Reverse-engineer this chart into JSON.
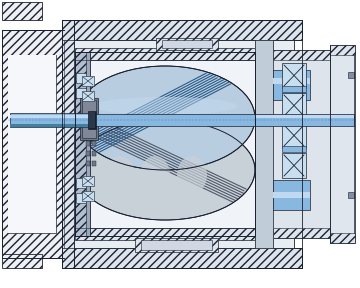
{
  "bg_color": "#ffffff",
  "hatch_color": "#8090a8",
  "metal_light": "#c8d0dc",
  "metal_mid": "#9aa8b8",
  "metal_dark": "#6a7888",
  "rotor_blue_light": "#b8cee0",
  "rotor_blue_mid": "#8ab0d0",
  "rotor_blue_dark": "#2a5a8a",
  "rotor_gray_light": "#c8d0d8",
  "rotor_gray_mid": "#9098a8",
  "rotor_gray_dark": "#505868",
  "shaft_blue_light": "#c0d8f0",
  "shaft_blue_mid": "#88b8e0",
  "shaft_blue_dark": "#5090c0",
  "bearing_bg": "#c8dff0",
  "line_color": "#1a2030",
  "wall_hatch": "#b0bcc8",
  "wall_fill": "#dde4ec",
  "inner_bg": "#e8edf5",
  "rotor_chamber_bg": "#f0f4f8"
}
